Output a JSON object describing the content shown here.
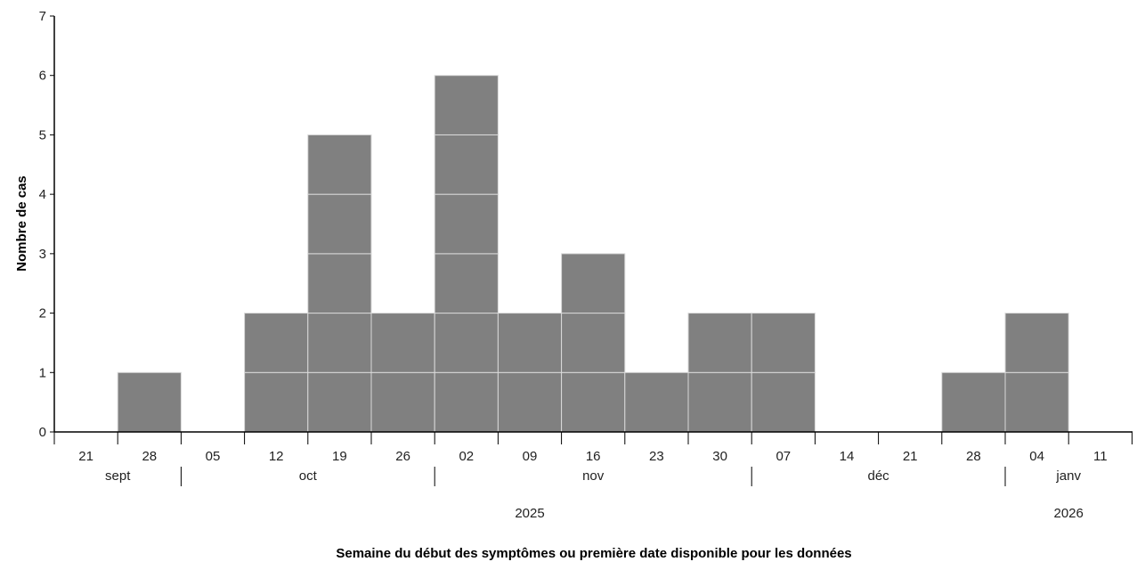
{
  "chart_data": {
    "type": "bar",
    "title": "",
    "xlabel": "Semaine du début des symptômes ou première date disponible pour les données",
    "ylabel": "Nombre de cas",
    "ylim": [
      0,
      7
    ],
    "yticks": [
      "0",
      "1",
      "2",
      "3",
      "4",
      "5",
      "6",
      "7"
    ],
    "grid": false,
    "stacked_unit_cases": true,
    "categories": [
      "21",
      "28",
      "05",
      "12",
      "19",
      "26",
      "02",
      "09",
      "16",
      "23",
      "30",
      "07",
      "14",
      "21",
      "28",
      "04",
      "11"
    ],
    "week_start_dates": [
      "2025-09-21",
      "2025-09-28",
      "2025-10-05",
      "2025-10-12",
      "2025-10-19",
      "2025-10-26",
      "2025-11-02",
      "2025-11-09",
      "2025-11-16",
      "2025-11-23",
      "2025-11-30",
      "2025-12-07",
      "2025-12-14",
      "2025-12-21",
      "2025-12-28",
      "2026-01-04",
      "2026-01-11"
    ],
    "values": [
      0,
      1,
      0,
      2,
      5,
      2,
      6,
      2,
      3,
      1,
      2,
      2,
      0,
      0,
      1,
      2,
      0
    ],
    "months": [
      {
        "label": "sept",
        "start": 0,
        "end": 2
      },
      {
        "label": "oct",
        "start": 2,
        "end": 6
      },
      {
        "label": "nov",
        "start": 6,
        "end": 11
      },
      {
        "label": "déc",
        "start": 11,
        "end": 15
      },
      {
        "label": "janv",
        "start": 15,
        "end": 17
      }
    ],
    "years": [
      {
        "label": "2025",
        "start": 0,
        "end": 15
      },
      {
        "label": "2026",
        "start": 15,
        "end": 17
      }
    ],
    "bar_color": "#808080",
    "divider_color": "#d9d9d9"
  }
}
